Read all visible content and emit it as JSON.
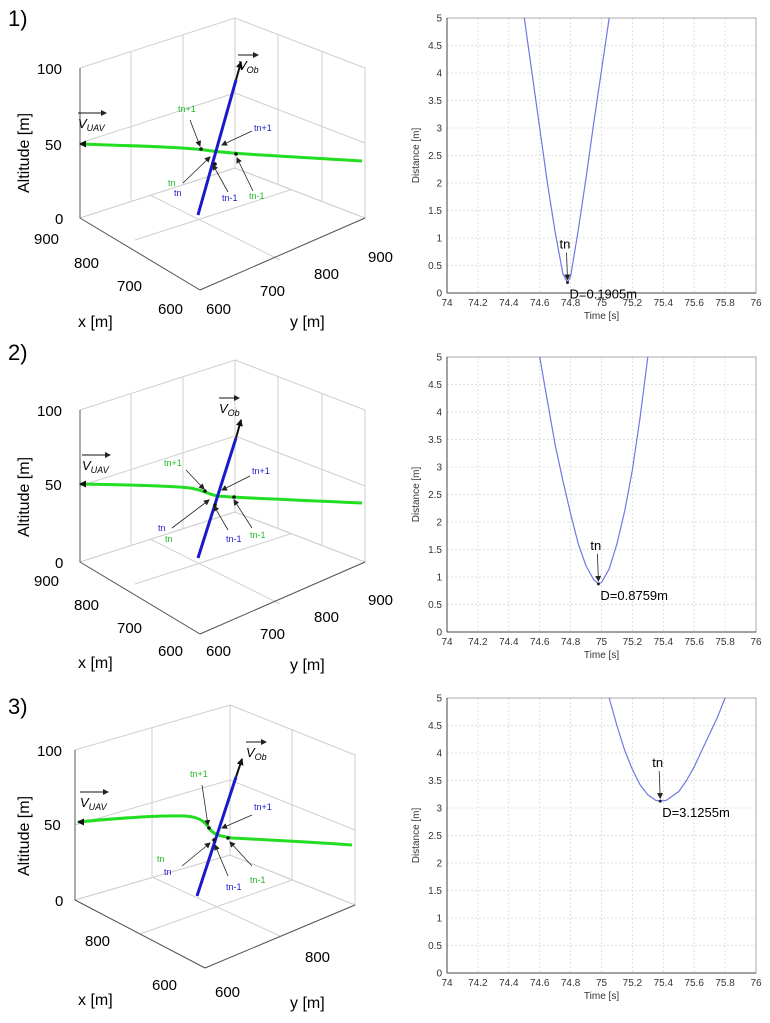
{
  "colors": {
    "uav_path": "#22dd22",
    "obstacle_path": "#1a1acc",
    "distance_curve": "#6f78e0",
    "axis": "#444444",
    "grid": "#d8d8d8",
    "pane": "#cfcfcf"
  },
  "panels": [
    {
      "label": "1)",
      "plot3d": {
        "z_label": "Altitude [m]",
        "x_label": "x [m]",
        "y_label": "y [m]",
        "z_ticks": [
          "100",
          "50",
          "0"
        ],
        "x_ticks": [
          "900",
          "800",
          "700",
          "600"
        ],
        "y_ticks": [
          "600",
          "700",
          "800",
          "900"
        ],
        "vector_ob": "V_Ob",
        "vector_uav": "V_UAV",
        "green_labels": [
          "tn+1",
          "tn",
          "tn-1"
        ],
        "blue_labels": [
          "tn+1",
          "tn",
          "tn-1"
        ]
      },
      "annotation": {
        "point": "tn",
        "text": "D=0.1905m"
      }
    },
    {
      "label": "2)",
      "plot3d": {
        "z_label": "Altitude [m]",
        "x_label": "x [m]",
        "y_label": "y [m]",
        "z_ticks": [
          "100",
          "50",
          "0"
        ],
        "x_ticks": [
          "900",
          "800",
          "700",
          "600"
        ],
        "y_ticks": [
          "600",
          "700",
          "800",
          "900"
        ],
        "vector_ob": "V_Ob",
        "vector_uav": "V_UAV",
        "green_labels": [
          "tn+1",
          "tn",
          "tn-1"
        ],
        "blue_labels": [
          "tn+1",
          "tn",
          "tn-1"
        ]
      },
      "annotation": {
        "point": "tn",
        "text": "D=0.8759m"
      }
    },
    {
      "label": "3)",
      "plot3d": {
        "z_label": "Altitude [m]",
        "x_label": "x [m]",
        "y_label": "y [m]",
        "z_ticks": [
          "100",
          "50",
          "0"
        ],
        "x_ticks": [
          "800",
          "600"
        ],
        "y_ticks": [
          "600",
          "800"
        ],
        "vector_ob": "V_Ob",
        "vector_uav": "V_UAV",
        "green_labels": [
          "tn+1",
          "tn",
          "tn-1"
        ],
        "blue_labels": [
          "tn+1",
          "tn",
          "tn-1"
        ]
      },
      "annotation": {
        "point": "tn",
        "text": "D=3.1255m"
      }
    }
  ],
  "chart_data": [
    {
      "type": "line",
      "xlabel": "Time [s]",
      "ylabel": "Distance [m]",
      "xlim": [
        74,
        76
      ],
      "ylim": [
        0,
        5
      ],
      "xticks": [
        "74",
        "74.2",
        "74.4",
        "74.6",
        "74.8",
        "75",
        "75.2",
        "75.4",
        "75.6",
        "75.8",
        "76"
      ],
      "yticks": [
        "0",
        "0.5",
        "1",
        "1.5",
        "2",
        "2.5",
        "3",
        "3.5",
        "4",
        "4.5",
        "5"
      ],
      "grid": true,
      "minimum": {
        "x": 74.78,
        "y": 0.1905
      },
      "x": [
        74.5,
        74.55,
        74.6,
        74.65,
        74.7,
        74.75,
        74.78,
        74.8,
        74.85,
        74.9,
        74.95,
        75.0,
        75.05
      ],
      "y": [
        5.0,
        4.0,
        3.0,
        2.0,
        1.1,
        0.35,
        0.1905,
        0.3,
        1.15,
        2.1,
        3.1,
        4.05,
        5.0
      ]
    },
    {
      "type": "line",
      "xlabel": "Time [s]",
      "ylabel": "Distance [m]",
      "xlim": [
        74,
        76
      ],
      "ylim": [
        0,
        5
      ],
      "xticks": [
        "74",
        "74.2",
        "74.4",
        "74.6",
        "74.8",
        "75",
        "75.2",
        "75.4",
        "75.6",
        "75.8",
        "76"
      ],
      "yticks": [
        "0",
        "0.5",
        "1",
        "1.5",
        "2",
        "2.5",
        "3",
        "3.5",
        "4",
        "4.5",
        "5"
      ],
      "grid": true,
      "minimum": {
        "x": 74.98,
        "y": 0.8759
      },
      "x": [
        74.6,
        74.65,
        74.7,
        74.75,
        74.8,
        74.85,
        74.9,
        74.95,
        74.98,
        75.0,
        75.05,
        75.1,
        75.15,
        75.2,
        75.25,
        75.3
      ],
      "y": [
        5.0,
        4.2,
        3.4,
        2.75,
        2.15,
        1.6,
        1.2,
        0.95,
        0.8759,
        0.9,
        1.15,
        1.6,
        2.2,
        2.95,
        3.9,
        5.0
      ]
    },
    {
      "type": "line",
      "xlabel": "Time [s]",
      "ylabel": "Distance [m]",
      "xlim": [
        74,
        76
      ],
      "ylim": [
        0,
        5
      ],
      "xticks": [
        "74",
        "74.2",
        "74.4",
        "74.6",
        "74.8",
        "75",
        "75.2",
        "75.4",
        "75.6",
        "75.8",
        "76"
      ],
      "yticks": [
        "0",
        "0.5",
        "1",
        "1.5",
        "2",
        "2.5",
        "3",
        "3.5",
        "4",
        "4.5",
        "5"
      ],
      "grid": true,
      "minimum": {
        "x": 75.38,
        "y": 3.1255
      },
      "x": [
        75.05,
        75.1,
        75.15,
        75.2,
        75.25,
        75.3,
        75.35,
        75.38,
        75.42,
        75.5,
        75.55,
        75.6,
        75.65,
        75.7,
        75.75,
        75.8
      ],
      "y": [
        5.0,
        4.5,
        4.05,
        3.7,
        3.42,
        3.24,
        3.14,
        3.1255,
        3.14,
        3.3,
        3.5,
        3.75,
        4.05,
        4.35,
        4.65,
        5.0
      ]
    }
  ]
}
